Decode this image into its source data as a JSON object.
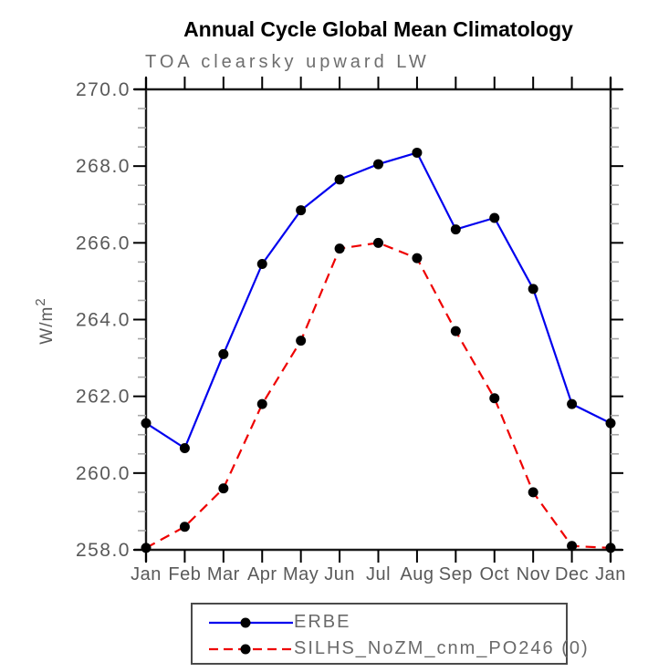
{
  "page": {
    "title": "Annual Cycle Global Mean Climatology",
    "subtitle": "TOA clearsky upward LW"
  },
  "ylabel": {
    "base": "W/m",
    "exp": "2"
  },
  "legend": {
    "entries": [
      {
        "label": "ERBE",
        "color": "#0000ee",
        "line_style": "solid",
        "marker_color": "#000000"
      },
      {
        "label": "SILHS_NoZM_cnm_PO246 (0)",
        "color": "#ee0000",
        "line_style": "dashed",
        "marker_color": "#000000"
      }
    ]
  },
  "colors": {
    "axis": "#1a1a1a",
    "major_tick": "#000000",
    "minor_tick": "#a6a6a6",
    "tick_label": "#595959",
    "subtitle": "#6e6e6e",
    "title": "#000000"
  },
  "chart_data": {
    "type": "line",
    "title": "Annual Cycle Global Mean Climatology",
    "subtitle": "TOA clearsky upward LW",
    "xlabel": "",
    "ylabel": "W/m²",
    "categories": [
      "Jan",
      "Feb",
      "Mar",
      "Apr",
      "May",
      "Jun",
      "Jul",
      "Aug",
      "Sep",
      "Oct",
      "Nov",
      "Dec",
      "Jan"
    ],
    "series": [
      {
        "name": "ERBE",
        "color": "#0000ee",
        "line_style": "solid",
        "marker": "filled-circle",
        "marker_color": "#000000",
        "values": [
          261.3,
          260.65,
          263.1,
          265.45,
          266.85,
          267.65,
          268.05,
          268.35,
          266.35,
          266.65,
          264.8,
          261.8,
          261.3
        ]
      },
      {
        "name": "SILHS_NoZM_cnm_PO246 (0)",
        "color": "#ee0000",
        "line_style": "dashed",
        "marker": "filled-circle",
        "marker_color": "#000000",
        "values": [
          258.05,
          258.6,
          259.6,
          261.8,
          263.45,
          265.85,
          266.0,
          265.6,
          263.7,
          261.95,
          259.5,
          258.1,
          258.05
        ]
      }
    ],
    "ylim": [
      258.0,
      270.0
    ],
    "ytick_major_interval": 2.0,
    "ytick_minor_interval": 0.5,
    "ytick_labels": [
      "258.0",
      "260.0",
      "262.0",
      "264.0",
      "266.0",
      "268.0",
      "270.0"
    ],
    "grid": false,
    "legend_position": "bottom"
  }
}
